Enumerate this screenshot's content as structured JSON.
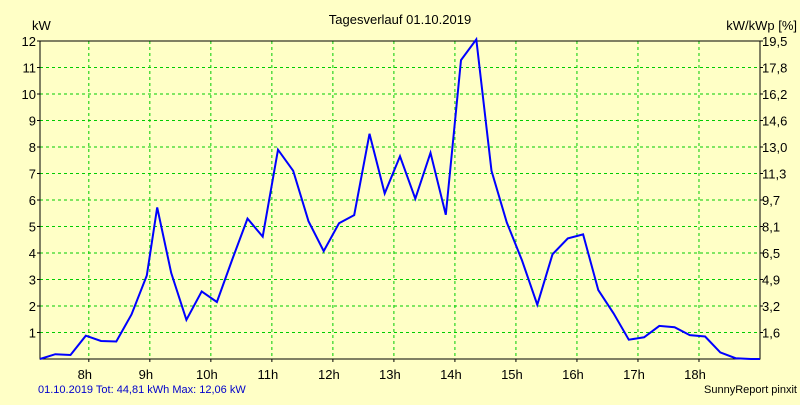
{
  "colors": {
    "background": "#ffffc6",
    "plot_border": "#000000",
    "grid": "#00cc00",
    "line": "#0000ff",
    "footer_left": "#0000cc",
    "text": "#000000"
  },
  "footer": {
    "left": "01.10.2019 Tot: 44,81 kWh Max: 12,06 kW",
    "right": "SunnyReport pinxit"
  },
  "chart_data": {
    "type": "line",
    "title": "Tagesverlauf 01.10.2019",
    "ylabel_left": "kW",
    "ylabel_right": "kW/kWp [%]",
    "ylim": [
      0,
      12
    ],
    "grid": true,
    "y_ticks": [
      "1",
      "2",
      "3",
      "4",
      "5",
      "6",
      "7",
      "8",
      "9",
      "10",
      "11",
      "12"
    ],
    "y_right_ticks": [
      "1,6",
      "3,2",
      "4,9",
      "6,5",
      "8,1",
      "9,7",
      "11,3",
      "13,0",
      "14,6",
      "16,2",
      "17,8",
      "19,5"
    ],
    "x_ticks": [
      {
        "label": "8h",
        "hour": 8
      },
      {
        "label": "9h",
        "hour": 9
      },
      {
        "label": "10h",
        "hour": 10
      },
      {
        "label": "11h",
        "hour": 11
      },
      {
        "label": "12h",
        "hour": 12
      },
      {
        "label": "13h",
        "hour": 13
      },
      {
        "label": "14h",
        "hour": 14
      },
      {
        "label": "15h",
        "hour": 15
      },
      {
        "label": "16h",
        "hour": 16
      },
      {
        "label": "17h",
        "hour": 17
      },
      {
        "label": "18h",
        "hour": 18
      }
    ],
    "xlim": [
      7.2,
      19.0
    ],
    "series": [
      {
        "x": [
          7.2,
          7.45,
          7.7,
          7.95,
          8.2,
          8.45,
          8.7,
          8.95,
          9.12,
          9.35,
          9.6,
          9.85,
          10.1,
          10.35,
          10.6,
          10.85,
          11.1,
          11.35,
          11.6,
          11.85,
          12.1,
          12.35,
          12.6,
          12.85,
          13.1,
          13.35,
          13.6,
          13.85,
          14.1,
          14.35,
          14.6,
          14.85,
          15.1,
          15.35,
          15.6,
          15.85,
          16.1,
          16.35,
          16.6,
          16.85,
          17.1,
          17.35,
          17.6,
          17.85,
          18.1,
          18.35,
          18.6,
          18.85,
          19.0
        ],
        "y": [
          0.0,
          0.18,
          0.15,
          0.88,
          0.68,
          0.66,
          1.68,
          3.15,
          5.72,
          3.25,
          1.48,
          2.55,
          2.15,
          3.75,
          5.3,
          4.62,
          7.9,
          7.1,
          5.2,
          4.07,
          5.12,
          5.43,
          8.5,
          6.25,
          7.65,
          6.05,
          7.78,
          5.44,
          11.28,
          12.06,
          7.1,
          5.15,
          3.72,
          2.05,
          3.95,
          4.55,
          4.7,
          2.6,
          1.72,
          0.73,
          0.82,
          1.25,
          1.2,
          0.9,
          0.85,
          0.25,
          0.03,
          0.0,
          0.0
        ]
      }
    ]
  }
}
